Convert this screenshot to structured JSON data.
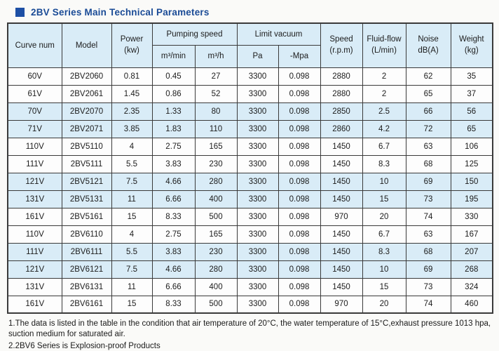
{
  "title": {
    "text": "2BV Series Main Technical Parameters"
  },
  "colors": {
    "title_blue": "#1a4b96",
    "bullet_blue": "#1d4fa5",
    "cell_blue": "#d9ecf7",
    "border_dark": "#3a3a3a",
    "page_bg": "#fafaf8"
  },
  "table": {
    "header": {
      "curve_num": "Curve num",
      "model": "Model",
      "power_l1": "Power",
      "power_l2": "(kw)",
      "pumping_speed": "Pumping speed",
      "m3_min": "m³/min",
      "m3_h": "m³/h",
      "limit_vacuum": "Limit vacuum",
      "pa": "Pa",
      "mpa": "-Mpa",
      "speed_l1": "Speed",
      "speed_l2": "(r.p.m)",
      "fluid_l1": "Fluid-flow",
      "fluid_l2": "(L/min)",
      "noise_l1": "Noise",
      "noise_l2": "dB(A)",
      "weight_l1": "Weight",
      "weight_l2": "(kg)"
    },
    "column_keys": [
      "curve-num",
      "model",
      "power-kw",
      "pumping-m3min",
      "pumping-m3h",
      "vacuum-pa",
      "vacuum-mpa",
      "speed-rpm",
      "fluid-flow",
      "noise-db",
      "weight-kg"
    ],
    "rows": [
      {
        "shaded": false,
        "cells": [
          "60V",
          "2BV2060",
          "0.81",
          "0.45",
          "27",
          "3300",
          "0.098",
          "2880",
          "2",
          "62",
          "35"
        ]
      },
      {
        "shaded": false,
        "cells": [
          "61V",
          "2BV2061",
          "1.45",
          "0.86",
          "52",
          "3300",
          "0.098",
          "2880",
          "2",
          "65",
          "37"
        ]
      },
      {
        "shaded": true,
        "cells": [
          "70V",
          "2BV2070",
          "2.35",
          "1.33",
          "80",
          "3300",
          "0.098",
          "2850",
          "2.5",
          "66",
          "56"
        ]
      },
      {
        "shaded": true,
        "cells": [
          "71V",
          "2BV2071",
          "3.85",
          "1.83",
          "110",
          "3300",
          "0.098",
          "2860",
          "4.2",
          "72",
          "65"
        ]
      },
      {
        "shaded": false,
        "cells": [
          "110V",
          "2BV5110",
          "4",
          "2.75",
          "165",
          "3300",
          "0.098",
          "1450",
          "6.7",
          "63",
          "106"
        ]
      },
      {
        "shaded": false,
        "cells": [
          "111V",
          "2BV5111",
          "5.5",
          "3.83",
          "230",
          "3300",
          "0.098",
          "1450",
          "8.3",
          "68",
          "125"
        ]
      },
      {
        "shaded": true,
        "cells": [
          "121V",
          "2BV5121",
          "7.5",
          "4.66",
          "280",
          "3300",
          "0.098",
          "1450",
          "10",
          "69",
          "150"
        ]
      },
      {
        "shaded": true,
        "cells": [
          "131V",
          "2BV5131",
          "11",
          "6.66",
          "400",
          "3300",
          "0.098",
          "1450",
          "15",
          "73",
          "195"
        ]
      },
      {
        "shaded": false,
        "cells": [
          "161V",
          "2BV5161",
          "15",
          "8.33",
          "500",
          "3300",
          "0.098",
          "970",
          "20",
          "74",
          "330"
        ]
      },
      {
        "shaded": false,
        "cells": [
          "110V",
          "2BV6110",
          "4",
          "2.75",
          "165",
          "3300",
          "0.098",
          "1450",
          "6.7",
          "63",
          "167"
        ]
      },
      {
        "shaded": true,
        "cells": [
          "111V",
          "2BV6111",
          "5.5",
          "3.83",
          "230",
          "3300",
          "0.098",
          "1450",
          "8.3",
          "68",
          "207"
        ]
      },
      {
        "shaded": true,
        "cells": [
          "121V",
          "2BV6121",
          "7.5",
          "4.66",
          "280",
          "3300",
          "0.098",
          "1450",
          "10",
          "69",
          "268"
        ]
      },
      {
        "shaded": false,
        "cells": [
          "131V",
          "2BV6131",
          "11",
          "6.66",
          "400",
          "3300",
          "0.098",
          "1450",
          "15",
          "73",
          "324"
        ]
      },
      {
        "shaded": false,
        "cells": [
          "161V",
          "2BV6161",
          "15",
          "8.33",
          "500",
          "3300",
          "0.098",
          "970",
          "20",
          "74",
          "460"
        ]
      }
    ]
  },
  "notes": [
    "1.The data is listed in the table in the condition that air temperature of 20°C, the water temperature of 15°C,exhaust pressure 1013 hpa, suction medium for saturated air.",
    "2.2BV6 Series is Explosion-proof Products"
  ]
}
